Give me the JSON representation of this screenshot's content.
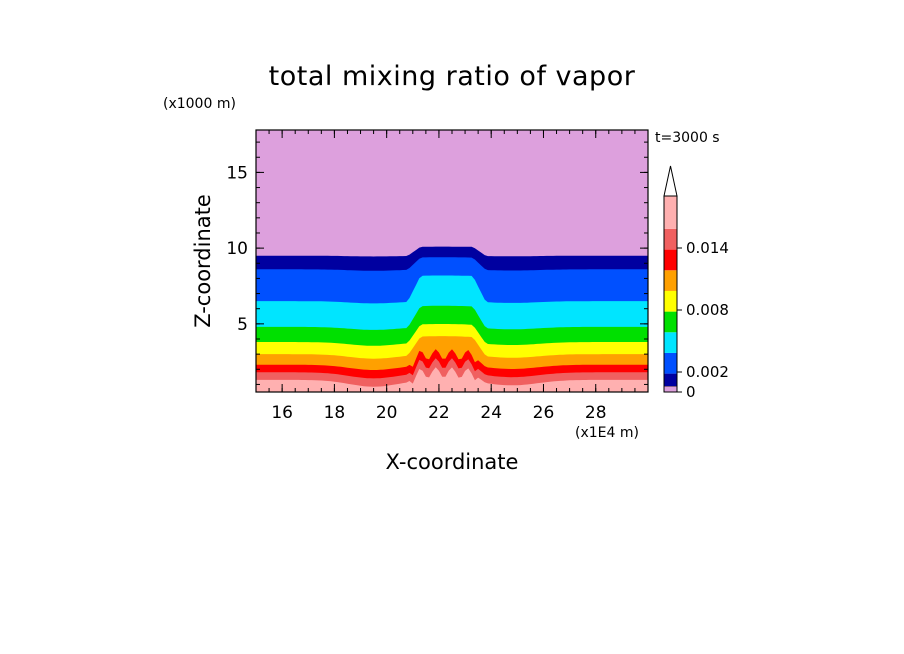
{
  "chart_data": {
    "type": "heatmap",
    "title": "total mixing ratio of vapor",
    "xlabel": "X-coordinate",
    "ylabel": "Z-coordinate",
    "x_unit": "(x1E4 m)",
    "y_unit": "(x1000 m)",
    "time_label": "t=3000 s",
    "xlim": [
      15,
      30
    ],
    "ylim": [
      0.5,
      17.8
    ],
    "x_ticks": [
      16,
      18,
      20,
      22,
      24,
      26,
      28
    ],
    "y_ticks": [
      5,
      10,
      15
    ],
    "grid": false,
    "legend": "colorbar-right",
    "colorbar": {
      "levels": [
        0,
        0.002,
        0.004,
        0.006,
        0.008,
        0.01,
        0.012,
        0.014,
        0.016
      ],
      "tick_labels": [
        "0",
        "0.002",
        "0.008",
        "0.014"
      ],
      "tick_values": [
        0,
        0.002,
        0.008,
        0.014
      ],
      "colors": [
        "#dda0dd",
        "#0000a0",
        "#0050ff",
        "#00e5ff",
        "#00e000",
        "#ffff00",
        "#ffa000",
        "#ff0000",
        "#f06060",
        "#ffb0b0"
      ],
      "extend": "max"
    },
    "bands": [
      {
        "level": 0,
        "color": "#dda0dd",
        "z_flat": 17.8,
        "z_mid": 17.8
      },
      {
        "level": 0.0005,
        "color": "#0000a0",
        "z_flat": 9.5,
        "z_mid": 10.1
      },
      {
        "level": 0.001,
        "color": "#0050ff",
        "z_flat": 8.6,
        "z_mid": 9.4
      },
      {
        "level": 0.002,
        "color": "#00e5ff",
        "z_flat": 6.5,
        "z_mid": 8.2
      },
      {
        "level": 0.004,
        "color": "#00e000",
        "z_flat": 4.8,
        "z_mid": 6.2
      },
      {
        "level": 0.006,
        "color": "#ffff00",
        "z_flat": 3.8,
        "z_mid": 5.0
      },
      {
        "level": 0.008,
        "color": "#ffa000",
        "z_flat": 3.0,
        "z_mid": 4.2
      },
      {
        "level": 0.01,
        "color": "#ff0000",
        "z_flat": 2.3,
        "z_mid": 3.0
      },
      {
        "level": 0.012,
        "color": "#f06060",
        "z_flat": 1.8,
        "z_mid": 2.4
      },
      {
        "level": 0.014,
        "color": "#ffb0b0",
        "z_flat": 1.3,
        "z_mid": 1.8
      }
    ]
  }
}
